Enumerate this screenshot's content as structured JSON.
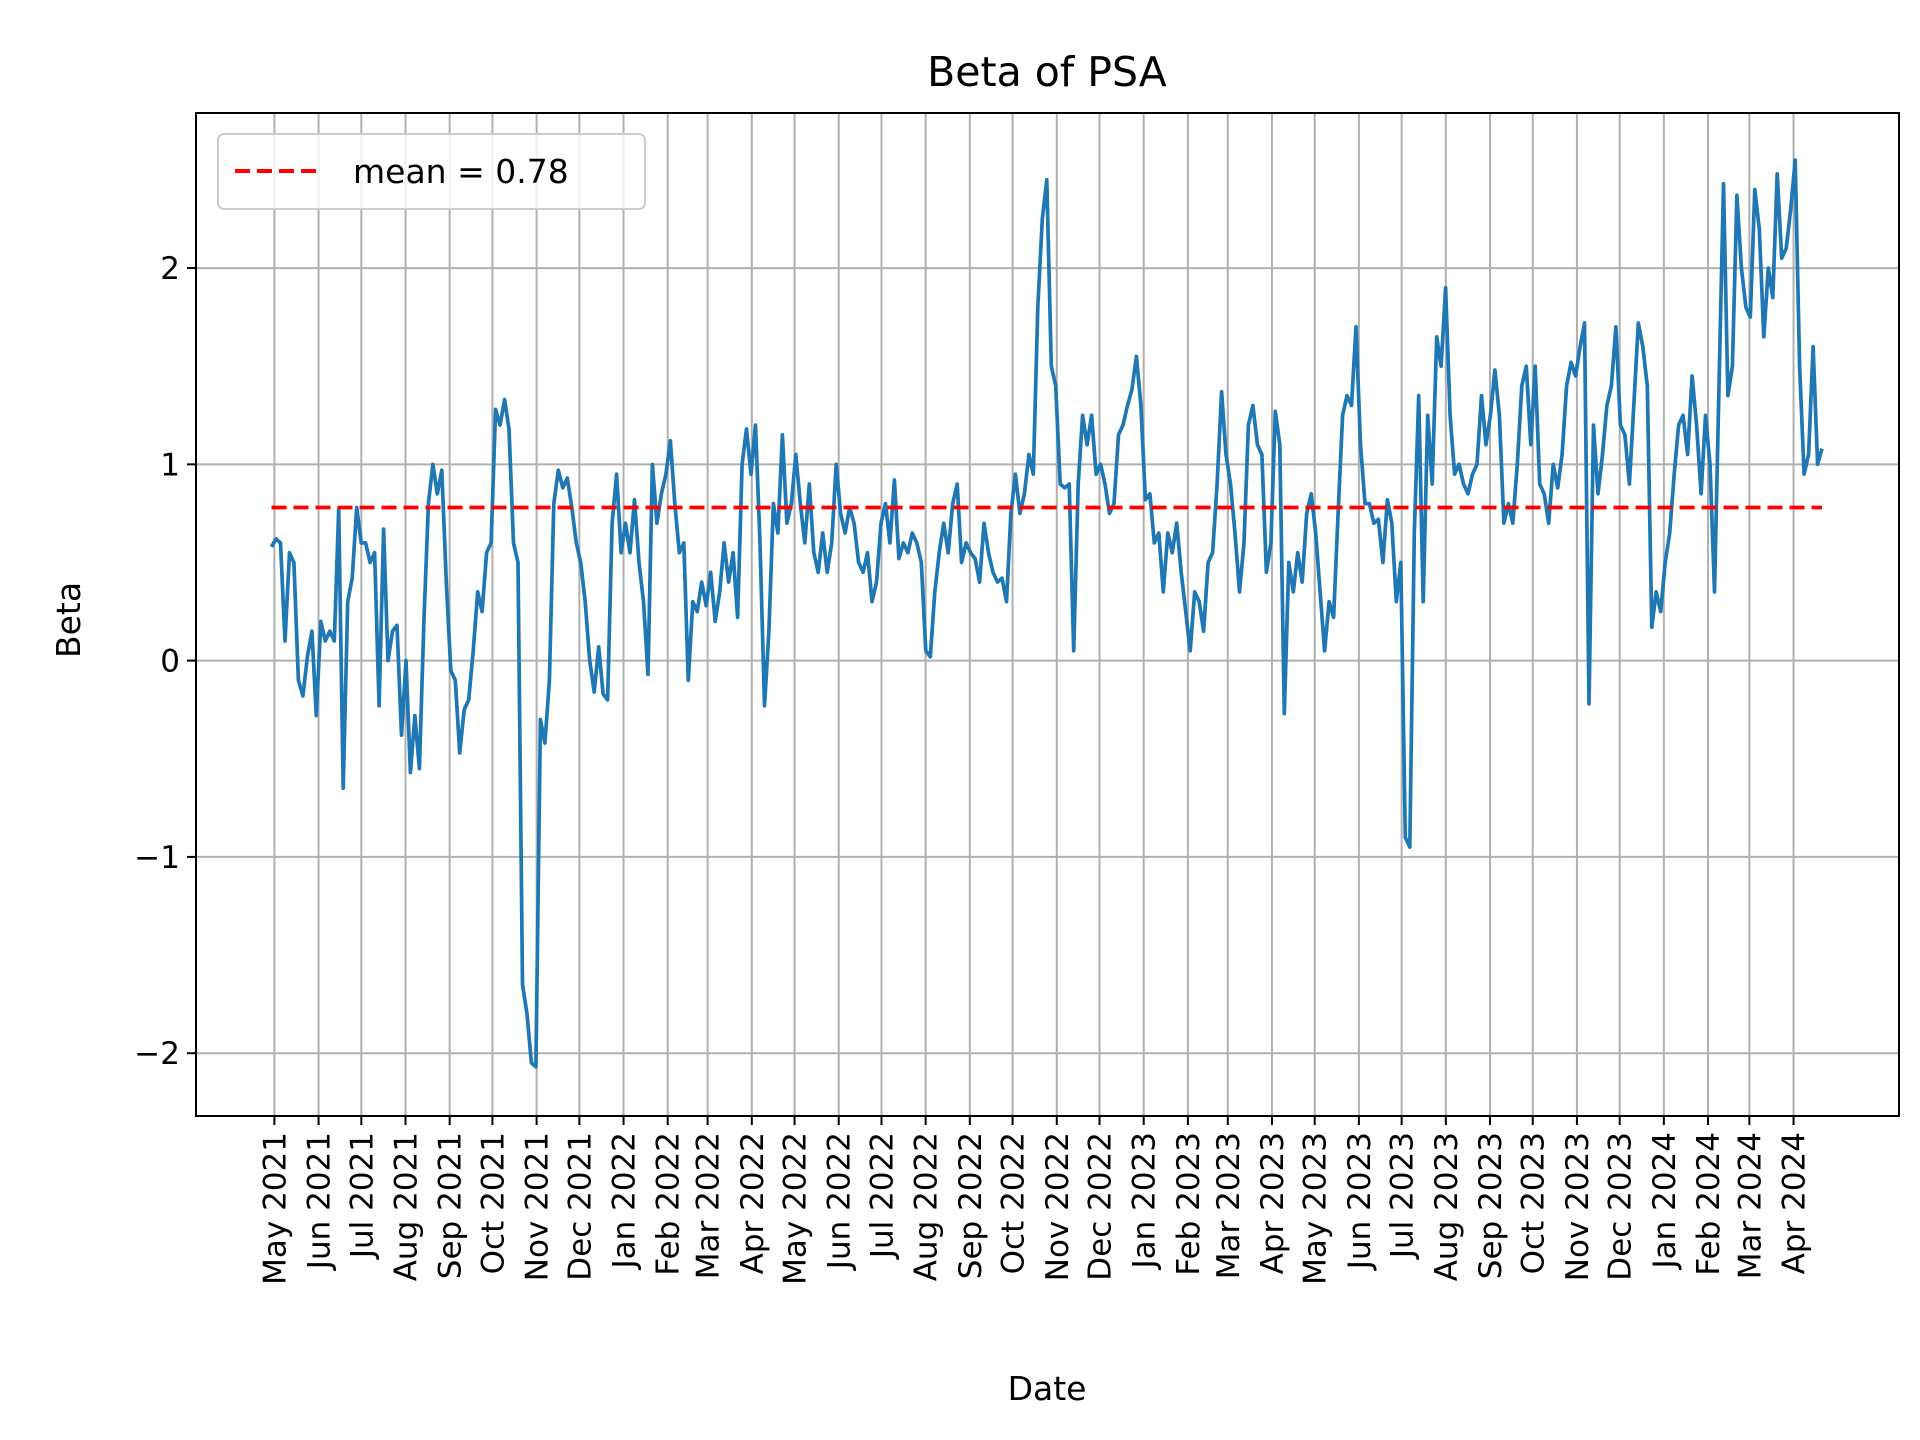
{
  "chart_data": {
    "type": "line",
    "title": "Beta of PSA",
    "xlabel": "Date",
    "ylabel": "Beta",
    "xlim": [
      "2021-03-07",
      "2024-06-14"
    ],
    "ylim": [
      -2.32,
      2.79
    ],
    "grid": true,
    "legend_position": "top-left",
    "yticks": [
      -2,
      -1,
      0,
      1,
      2
    ],
    "ytick_labels": [
      "−2",
      "−1",
      "0",
      "1",
      "2"
    ],
    "xticks": [
      "2021-05-01",
      "2021-06-01",
      "2021-07-01",
      "2021-08-01",
      "2021-09-01",
      "2021-10-01",
      "2021-11-01",
      "2021-12-01",
      "2022-01-01",
      "2022-02-01",
      "2022-03-01",
      "2022-04-01",
      "2022-05-01",
      "2022-06-01",
      "2022-07-01",
      "2022-08-01",
      "2022-09-01",
      "2022-10-01",
      "2022-11-01",
      "2022-12-01",
      "2023-01-01",
      "2023-02-01",
      "2023-03-01",
      "2023-04-01",
      "2023-05-01",
      "2023-06-01",
      "2023-07-01",
      "2023-08-01",
      "2023-09-01",
      "2023-10-01",
      "2023-11-01",
      "2023-12-01",
      "2024-01-01",
      "2024-02-01",
      "2024-03-01",
      "2024-04-01"
    ],
    "xtick_labels": [
      "May 2021",
      "Jun 2021",
      "Jul 2021",
      "Aug 2021",
      "Sep 2021",
      "Oct 2021",
      "Nov 2021",
      "Dec 2021",
      "Jan 2022",
      "Feb 2022",
      "Mar 2022",
      "Apr 2022",
      "May 2022",
      "Jun 2022",
      "Jul 2022",
      "Aug 2022",
      "Sep 2022",
      "Oct 2022",
      "Nov 2022",
      "Dec 2022",
      "Jan 2023",
      "Feb 2023",
      "Mar 2023",
      "Apr 2023",
      "May 2023",
      "Jun 2023",
      "Jul 2023",
      "Aug 2023",
      "Sep 2023",
      "Oct 2023",
      "Nov 2023",
      "Dec 2023",
      "Jan 2024",
      "Feb 2024",
      "Mar 2024",
      "Apr 2024"
    ],
    "series": [
      {
        "color": "#1f77b4",
        "x_start": "2021-04-29",
        "x_end": "2024-04-21",
        "values": [
          0.58,
          0.62,
          0.6,
          0.1,
          0.55,
          0.5,
          -0.1,
          -0.18,
          0.02,
          0.15,
          -0.28,
          0.2,
          0.1,
          0.15,
          0.1,
          0.77,
          -0.65,
          0.3,
          0.42,
          0.78,
          0.6,
          0.6,
          0.5,
          0.55,
          -0.23,
          0.67,
          0.0,
          0.15,
          0.18,
          -0.38,
          0.0,
          -0.57,
          -0.28,
          -0.55,
          0.2,
          0.8,
          1.0,
          0.85,
          0.97,
          0.4,
          -0.05,
          -0.1,
          -0.47,
          -0.25,
          -0.2,
          0.05,
          0.35,
          0.25,
          0.55,
          0.6,
          1.28,
          1.2,
          1.33,
          1.18,
          0.6,
          0.5,
          -1.65,
          -1.8,
          -2.05,
          -2.07,
          -0.3,
          -0.42,
          -0.1,
          0.8,
          0.97,
          0.88,
          0.93,
          0.78,
          0.6,
          0.5,
          0.3,
          0.0,
          -0.16,
          0.07,
          -0.17,
          -0.2,
          0.7,
          0.95,
          0.55,
          0.7,
          0.55,
          0.82,
          0.5,
          0.3,
          -0.07,
          1.0,
          0.7,
          0.85,
          0.95,
          1.12,
          0.8,
          0.55,
          0.6,
          -0.1,
          0.3,
          0.25,
          0.4,
          0.28,
          0.45,
          0.2,
          0.35,
          0.6,
          0.4,
          0.55,
          0.22,
          1.0,
          1.18,
          0.95,
          1.2,
          0.6,
          -0.23,
          0.15,
          0.8,
          0.65,
          1.15,
          0.7,
          0.8,
          1.05,
          0.8,
          0.6,
          0.9,
          0.55,
          0.45,
          0.65,
          0.45,
          0.6,
          1.0,
          0.75,
          0.65,
          0.78,
          0.7,
          0.5,
          0.45,
          0.55,
          0.3,
          0.4,
          0.7,
          0.8,
          0.6,
          0.92,
          0.52,
          0.6,
          0.55,
          0.65,
          0.6,
          0.5,
          0.05,
          0.02,
          0.35,
          0.55,
          0.7,
          0.55,
          0.8,
          0.9,
          0.5,
          0.6,
          0.55,
          0.52,
          0.4,
          0.7,
          0.55,
          0.45,
          0.4,
          0.42,
          0.3,
          0.75,
          0.95,
          0.75,
          0.85,
          1.05,
          0.95,
          1.8,
          2.25,
          2.45,
          1.5,
          1.4,
          0.9,
          0.88,
          0.9,
          0.05,
          0.9,
          1.25,
          1.1,
          1.25,
          0.95,
          1.0,
          0.9,
          0.75,
          0.8,
          1.15,
          1.2,
          1.3,
          1.38,
          1.55,
          1.3,
          0.82,
          0.85,
          0.6,
          0.65,
          0.35,
          0.65,
          0.55,
          0.7,
          0.45,
          0.25,
          0.05,
          0.35,
          0.3,
          0.15,
          0.5,
          0.55,
          0.9,
          1.37,
          1.05,
          0.9,
          0.65,
          0.35,
          0.6,
          1.2,
          1.3,
          1.1,
          1.05,
          0.45,
          0.6,
          1.27,
          1.1,
          -0.27,
          0.5,
          0.35,
          0.55,
          0.4,
          0.75,
          0.85,
          0.65,
          0.35,
          0.05,
          0.3,
          0.22,
          0.75,
          1.25,
          1.35,
          1.3,
          1.7,
          1.1,
          0.8,
          0.8,
          0.7,
          0.72,
          0.5,
          0.82,
          0.7,
          0.3,
          0.5,
          -0.9,
          -0.95,
          0.65,
          1.35,
          0.3,
          1.25,
          0.9,
          1.65,
          1.5,
          1.9,
          1.25,
          0.95,
          1.0,
          0.9,
          0.85,
          0.95,
          1.0,
          1.35,
          1.1,
          1.25,
          1.48,
          1.25,
          0.7,
          0.8,
          0.7,
          1.0,
          1.4,
          1.5,
          1.1,
          1.5,
          0.9,
          0.85,
          0.7,
          1.0,
          0.88,
          1.05,
          1.4,
          1.52,
          1.45,
          1.6,
          1.72,
          -0.22,
          1.2,
          0.85,
          1.05,
          1.3,
          1.4,
          1.7,
          1.2,
          1.15,
          0.9,
          1.3,
          1.72,
          1.6,
          1.4,
          0.17,
          0.35,
          0.25,
          0.5,
          0.65,
          0.95,
          1.2,
          1.25,
          1.05,
          1.45,
          1.2,
          0.85,
          1.25,
          1.0,
          0.35,
          1.4,
          2.43,
          1.35,
          1.5,
          2.37,
          2.0,
          1.8,
          1.75,
          2.4,
          2.2,
          1.65,
          2.0,
          1.85,
          2.48,
          2.05,
          2.1,
          2.3,
          2.55,
          1.5,
          0.95,
          1.05,
          1.6,
          1.0,
          1.08
        ]
      }
    ],
    "mean_line": {
      "label": "mean = 0.78",
      "value": 0.78,
      "color": "#ff0000",
      "x_start": "2021-04-29",
      "x_end": "2024-04-21"
    }
  }
}
